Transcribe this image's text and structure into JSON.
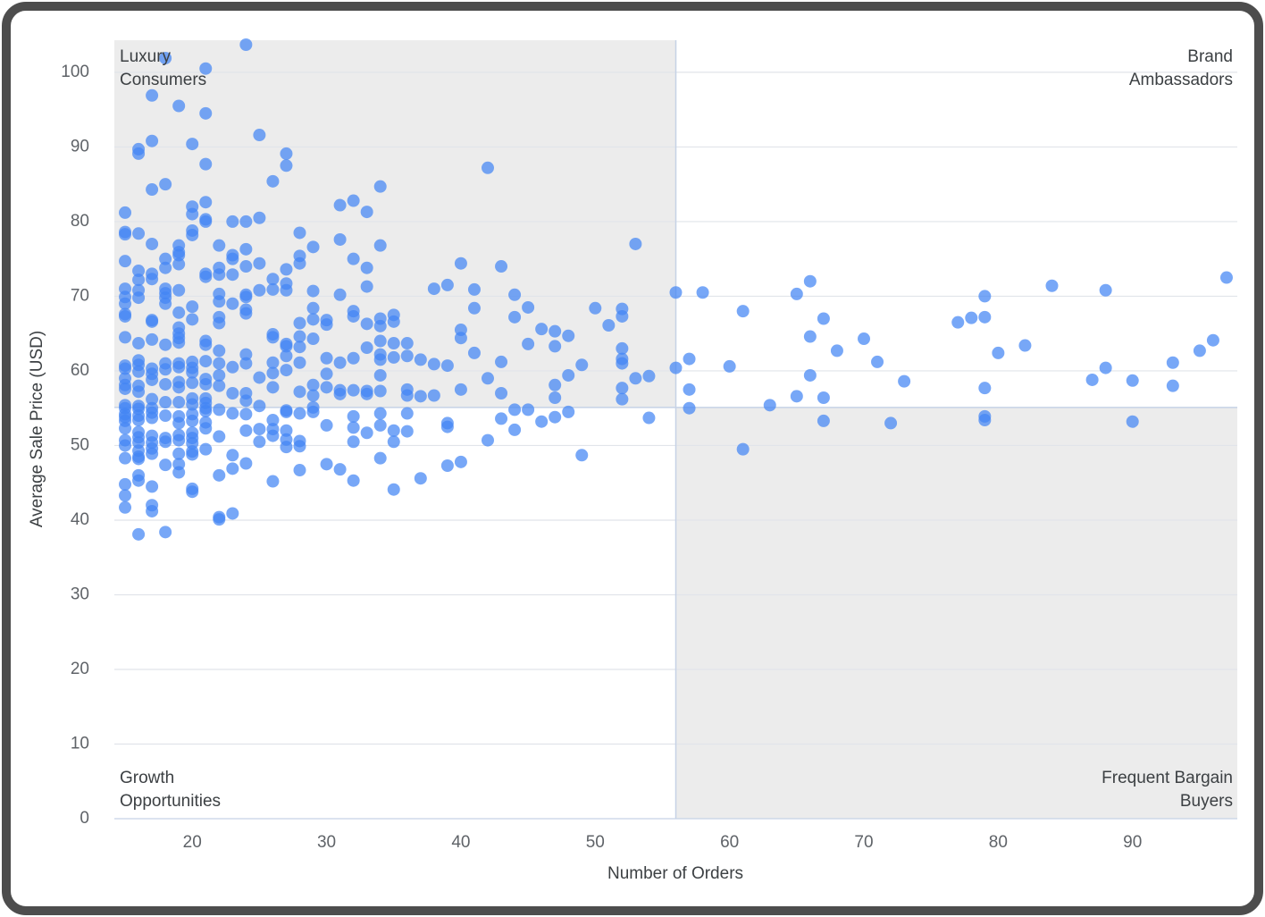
{
  "chart_data": {
    "type": "scatter",
    "x_label": "Number of Orders",
    "y_label": "Average Sale Price (USD)",
    "color": "#4285f4",
    "xlim": [
      14.2,
      97.8
    ],
    "ylim": [
      0,
      104.3
    ],
    "xticks": [
      20,
      30,
      40,
      50,
      60,
      70,
      80,
      90
    ],
    "yticks": [
      0,
      10,
      20,
      30,
      40,
      50,
      60,
      70,
      80,
      90,
      100
    ],
    "grid": true,
    "reference_lines": {
      "x": 56,
      "y": 55.1
    },
    "annotations": [
      {
        "lines": [
          "Luxury",
          "Consumers"
        ],
        "corner": "top-left"
      },
      {
        "lines": [
          "Brand",
          "Ambassadors"
        ],
        "corner": "top-right"
      },
      {
        "lines": [
          "Growth",
          "Opportunities"
        ],
        "corner": "bottom-left"
      },
      {
        "lines": [
          "Frequent Bargain",
          "Buyers"
        ],
        "corner": "bottom-right"
      }
    ],
    "x": [
      56,
      58,
      61,
      65,
      66,
      67,
      66,
      68,
      70,
      71,
      73,
      72,
      67,
      67,
      65,
      66,
      63,
      61,
      60,
      57,
      57,
      57,
      56,
      54,
      54,
      53,
      53,
      52,
      52,
      52,
      52,
      52,
      52,
      52,
      51,
      50,
      49,
      49,
      48,
      48,
      48,
      47,
      47,
      47,
      47,
      47,
      46,
      46,
      77,
      78,
      79,
      79,
      79,
      79,
      79,
      80,
      82,
      84,
      87,
      88,
      88,
      90,
      90,
      93,
      93,
      95,
      96,
      97,
      42,
      43,
      40,
      39,
      38,
      41,
      44,
      45,
      41,
      44,
      40,
      40,
      45,
      41,
      43,
      38,
      39,
      42,
      43,
      40,
      38,
      37,
      39,
      39,
      43,
      44,
      45,
      44,
      42,
      40,
      39,
      37,
      35,
      36,
      35,
      35,
      34,
      36,
      36,
      36,
      35,
      36,
      37,
      36,
      35,
      35,
      35,
      34,
      34,
      34,
      34,
      34,
      34,
      34,
      33,
      33,
      32,
      32,
      33,
      32,
      31,
      31,
      32,
      33,
      34,
      34,
      33,
      31,
      31,
      32,
      30,
      30,
      30,
      31,
      31,
      32,
      33,
      33,
      34,
      34,
      33,
      32,
      32,
      32,
      32,
      31,
      30,
      30,
      29,
      29,
      28,
      28,
      28,
      29,
      29,
      28,
      28,
      28,
      28,
      29,
      29,
      28,
      29,
      29,
      30,
      30,
      28,
      28,
      28,
      29,
      27,
      27,
      27,
      26,
      26,
      27,
      27,
      26,
      25,
      25,
      25,
      25,
      25,
      25,
      25,
      25,
      26,
      26,
      26,
      26,
      26,
      26,
      26,
      26,
      27,
      27,
      27,
      27,
      27,
      27,
      27,
      27,
      27,
      26,
      28,
      24,
      18,
      21,
      17,
      19,
      21,
      16,
      16,
      17,
      20,
      21,
      18,
      17,
      21,
      20,
      20,
      15,
      21,
      21,
      23,
      24,
      20,
      20,
      15,
      15,
      16,
      17,
      19,
      22,
      24,
      19,
      19,
      23,
      23,
      18,
      15,
      19,
      18,
      22,
      24,
      16,
      17,
      21,
      21,
      22,
      23,
      16,
      17,
      15,
      16,
      18,
      18,
      18,
      19,
      22,
      24,
      24,
      15,
      15,
      16,
      18,
      20,
      22,
      23,
      15,
      15,
      17,
      17,
      19,
      20,
      22,
      22,
      24,
      24,
      19,
      19,
      19,
      19,
      17,
      15,
      16,
      18,
      21,
      21,
      22,
      24,
      24,
      23,
      22,
      21,
      20,
      20,
      20,
      19,
      19,
      18,
      18,
      17,
      17,
      16,
      16,
      16,
      15,
      15,
      15,
      15,
      15,
      16,
      17,
      18,
      19,
      19,
      20,
      21,
      21,
      22,
      22,
      23,
      24,
      24,
      21,
      21,
      20,
      20,
      19,
      18,
      17,
      16,
      15,
      15,
      15,
      15,
      15,
      16,
      16,
      16,
      16,
      17,
      17,
      17,
      18,
      19,
      19,
      20,
      20,
      21,
      21,
      21,
      22,
      23,
      24,
      22,
      21,
      20,
      20,
      20,
      19,
      19,
      18,
      18,
      17,
      17,
      17,
      17,
      16,
      16,
      16,
      16,
      15,
      15,
      15,
      15,
      16,
      16,
      18,
      19,
      19,
      19,
      20,
      20,
      21,
      22,
      23,
      23,
      24,
      24,
      16,
      16,
      15,
      15,
      17,
      20,
      20,
      15,
      17,
      17,
      22,
      22,
      23,
      16,
      18
    ],
    "values": [
      70.5,
      70.5,
      68,
      70.3,
      72,
      67,
      64.6,
      62.7,
      64.3,
      61.2,
      58.6,
      53,
      53.3,
      56.4,
      56.6,
      59.4,
      55.4,
      49.5,
      60.6,
      61.6,
      57.5,
      55,
      60.4,
      59.3,
      53.7,
      59,
      77,
      68.3,
      67.3,
      63,
      61.6,
      61,
      57.7,
      56.2,
      66.1,
      68.4,
      60.8,
      48.7,
      64.7,
      59.4,
      54.5,
      65.3,
      63.3,
      58.1,
      56.4,
      53.8,
      65.6,
      53.2,
      66.5,
      67.1,
      67.2,
      70,
      57.7,
      53.9,
      53.4,
      62.4,
      63.4,
      71.4,
      58.8,
      70.8,
      60.4,
      58.7,
      53.2,
      61.1,
      58,
      62.7,
      64.1,
      72.5,
      87.2,
      74,
      74.4,
      71.5,
      71,
      70.9,
      70.2,
      68.5,
      68.4,
      67.2,
      65.5,
      64.4,
      63.6,
      62.4,
      61.2,
      60.9,
      60.7,
      59,
      57,
      57.5,
      56.7,
      56.6,
      53,
      52.5,
      53.6,
      54.8,
      54.8,
      52.1,
      50.7,
      47.8,
      47.3,
      45.6,
      44.1,
      51.9,
      50.5,
      52,
      48.3,
      54.3,
      57.5,
      56.7,
      61.8,
      62,
      61.5,
      63.7,
      63.7,
      66.6,
      67.5,
      67,
      66,
      64,
      62.2,
      61.5,
      59.4,
      57.3,
      63.1,
      66.3,
      68,
      67.3,
      73.8,
      75,
      77.6,
      82.2,
      82.8,
      81.3,
      84.7,
      76.8,
      71.3,
      70.2,
      61.1,
      61.7,
      61.7,
      59.6,
      57.8,
      57.4,
      56.9,
      57.4,
      57.3,
      56.9,
      54.3,
      52.7,
      51.7,
      53.9,
      52.4,
      50.5,
      45.3,
      46.8,
      47.5,
      52.7,
      54.5,
      55.1,
      54.3,
      50.6,
      49.9,
      56.7,
      58.1,
      57.2,
      61.1,
      63.2,
      64.6,
      64.3,
      66.9,
      66.4,
      68.4,
      70.7,
      66.8,
      66.2,
      74.4,
      75.4,
      78.5,
      76.6,
      73.6,
      71.7,
      70.8,
      72.3,
      70.9,
      89.1,
      87.5,
      85.4,
      91.6,
      80.5,
      74.4,
      70.8,
      59.1,
      55.3,
      52.2,
      50.5,
      53.4,
      52.2,
      51.3,
      57.8,
      59.7,
      61.1,
      64.5,
      64.9,
      63.6,
      63.3,
      62,
      60.1,
      54.7,
      54.5,
      52,
      50.8,
      49.8,
      45.2,
      46.7,
      103.7,
      101.9,
      100.5,
      96.9,
      95.5,
      94.5,
      89.7,
      89.1,
      90.8,
      90.4,
      87.7,
      85,
      84.3,
      82.6,
      82,
      81,
      81.2,
      80.3,
      80,
      80,
      80,
      78.8,
      78.2,
      78.6,
      78.3,
      78.4,
      77,
      76.8,
      76.8,
      76.3,
      75.9,
      75.5,
      75.5,
      75,
      75,
      74.7,
      74.3,
      73.8,
      73.8,
      74,
      73.4,
      73,
      73,
      72.6,
      72.9,
      72.9,
      72.2,
      72.3,
      71,
      70.8,
      71,
      70.4,
      69.8,
      70.8,
      70.3,
      70.2,
      69.9,
      69.9,
      69,
      69.8,
      69,
      68.6,
      69.3,
      69,
      67.6,
      67.3,
      66.8,
      66.6,
      67.8,
      66.9,
      67.2,
      66.4,
      67.7,
      68.2,
      65.8,
      65,
      64.4,
      63.8,
      64.2,
      64.5,
      63.7,
      63.5,
      64,
      63.5,
      62.7,
      62.2,
      61,
      60.5,
      61,
      61.3,
      61.2,
      60.4,
      59.8,
      61,
      60.5,
      61,
      60.2,
      60.3,
      59.6,
      61.4,
      60.8,
      59.9,
      60.7,
      60.3,
      59,
      58.1,
      57.6,
      58,
      58.8,
      58.2,
      58.5,
      57.8,
      58.4,
      58.9,
      58.2,
      59.4,
      58,
      57,
      57,
      56,
      56.3,
      55.7,
      56.3,
      55.5,
      55.8,
      55.8,
      56.2,
      57.2,
      55.4,
      55,
      54.2,
      53.8,
      53.3,
      55.3,
      54.9,
      54,
      53.4,
      55,
      54.4,
      53.7,
      54,
      53.9,
      53,
      54.2,
      53.3,
      55,
      54.6,
      53.1,
      54.8,
      54.3,
      54.2,
      51.2,
      52.3,
      51.7,
      51,
      50.3,
      51.4,
      50.7,
      51,
      50.5,
      51.3,
      50.4,
      49.6,
      48.9,
      51.8,
      51.1,
      50.4,
      49.3,
      52.3,
      50.7,
      50,
      48.3,
      48.5,
      48.2,
      47.4,
      47.5,
      46.4,
      48.9,
      49.2,
      48.8,
      49.5,
      46,
      46.9,
      48.7,
      47.6,
      52,
      46,
      45.3,
      44.8,
      43.3,
      44.5,
      44.2,
      43.8,
      41.7,
      42,
      41.2,
      40.4,
      40.1,
      40.9,
      38.1,
      38.4
    ]
  }
}
